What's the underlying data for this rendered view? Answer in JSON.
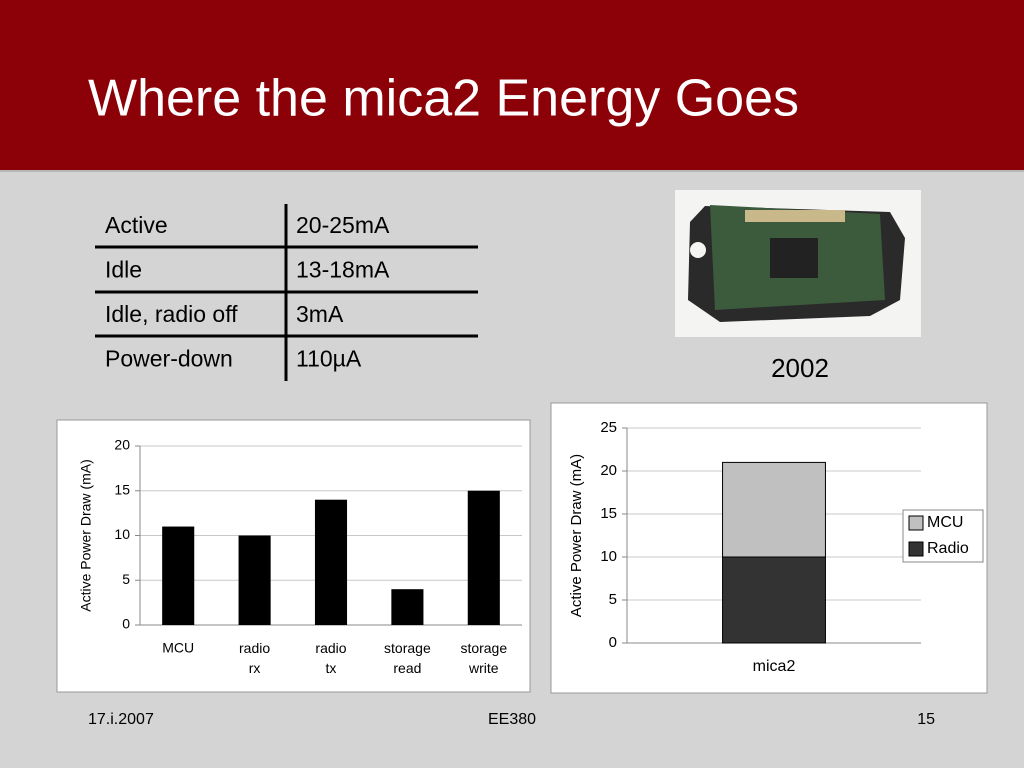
{
  "title": "Where the mica2 Energy Goes",
  "table": {
    "rows": [
      [
        "Active",
        "20-25mA"
      ],
      [
        "Idle",
        "13-18mA"
      ],
      [
        "Idle, radio off",
        "3mA"
      ],
      [
        "Power-down",
        "110µA"
      ]
    ]
  },
  "photo_caption": "2002",
  "footer": {
    "date": "17.i.2007",
    "course": "EE380",
    "page": "15"
  },
  "chart_data": [
    {
      "type": "bar",
      "y_label": "Active Power Draw (mA)",
      "categories": [
        "MCU",
        "radio rx",
        "radio tx",
        "storage read",
        "storage write"
      ],
      "values": [
        11,
        10,
        14,
        4,
        15
      ],
      "color": "#000000",
      "ylim": [
        0,
        20
      ],
      "yticks": [
        0,
        5,
        10,
        15,
        20
      ],
      "grid": true
    },
    {
      "type": "stacked_bar",
      "y_label": "Active Power Draw (mA)",
      "categories": [
        "mica2"
      ],
      "series": [
        {
          "name": "Radio",
          "color": "#333333",
          "values": [
            10
          ]
        },
        {
          "name": "MCU",
          "color": "#c0c0c0",
          "values": [
            11
          ]
        }
      ],
      "ylim": [
        0,
        25
      ],
      "yticks": [
        0,
        5,
        10,
        15,
        20,
        25
      ],
      "grid": true,
      "legend": "right"
    }
  ]
}
